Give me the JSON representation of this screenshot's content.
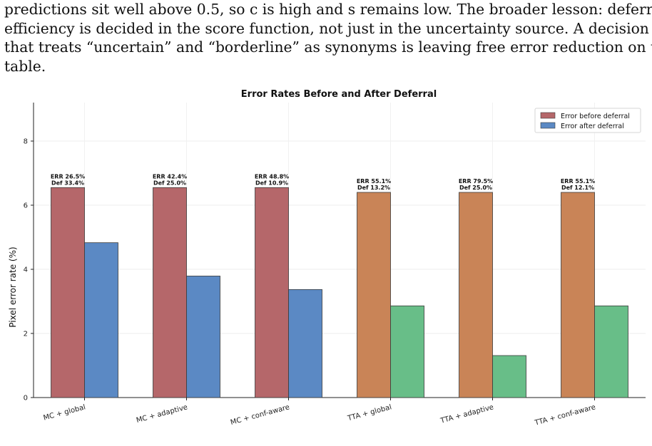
{
  "paragraph_lines": [
    "predictions sit well above 0.5, so c is high and s remains low.  The broader lesson: deferral",
    "efficiency is decided in the score function, not just in the uncertainty source.  A decision rule",
    "that treats “uncertain” and “borderline” as synonyms is leaving free error reduction on the",
    "table."
  ],
  "chart_data": {
    "type": "bar",
    "title": "Error Rates Before and After Deferral",
    "xlabel": "",
    "ylabel": "Pixel error rate (%)",
    "ylim": [
      0,
      9.2
    ],
    "yticks": [
      0,
      2,
      4,
      6,
      8
    ],
    "grid": true,
    "legend_position": "top-right",
    "categories": [
      "MC + global",
      "MC + adaptive",
      "MC + conf-aware",
      "TTA + global",
      "TTA + adaptive",
      "TTA + conf-aware"
    ],
    "series": [
      {
        "name": "Error before deferral",
        "values": [
          6.55,
          6.55,
          6.55,
          6.4,
          6.4,
          6.4
        ],
        "colors": [
          "#b5676a",
          "#b5676a",
          "#b5676a",
          "#c98457",
          "#c98457",
          "#c98457"
        ],
        "legend_color": "#b5676a"
      },
      {
        "name": "Error after deferral",
        "values": [
          4.83,
          3.79,
          3.37,
          2.86,
          1.31,
          2.86
        ],
        "colors": [
          "#5b89c4",
          "#5b89c4",
          "#5b89c4",
          "#68be88",
          "#68be88",
          "#68be88"
        ],
        "legend_color": "#5b89c4"
      }
    ],
    "annotations": [
      [
        "ERR 26.5%",
        "Def 33.4%"
      ],
      [
        "ERR 42.4%",
        "Def 25.0%"
      ],
      [
        "ERR 48.8%",
        "Def 10.9%"
      ],
      [
        "ERR 55.1%",
        "Def 13.2%"
      ],
      [
        "ERR 79.5%",
        "Def 25.0%"
      ],
      [
        "ERR 55.1%",
        "Def 12.1%"
      ]
    ]
  }
}
